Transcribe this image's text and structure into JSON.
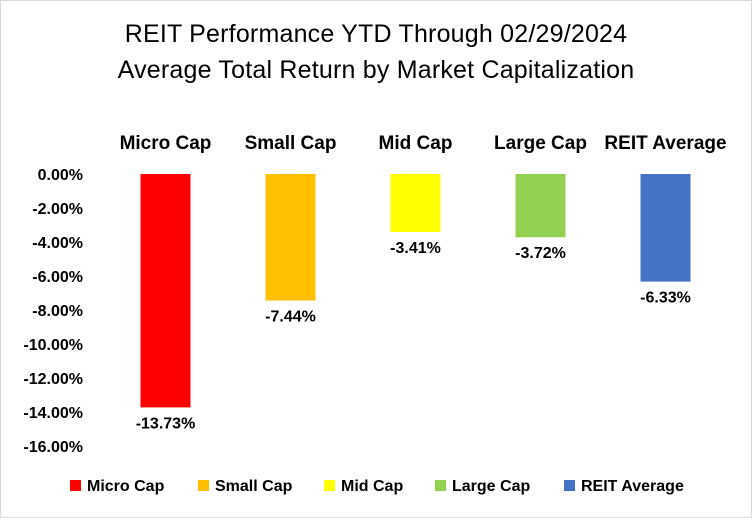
{
  "chart_data": {
    "type": "bar",
    "title": "REIT Performance YTD Through 02/29/2024",
    "subtitle": "Average Total Return by Market Capitalization",
    "categories": [
      "Micro Cap",
      "Small Cap",
      "Mid Cap",
      "Large Cap",
      "REIT Average"
    ],
    "values": [
      -13.73,
      -7.44,
      -3.41,
      -3.72,
      -6.33
    ],
    "data_labels": [
      "-13.73%",
      "-7.44%",
      "-3.41%",
      "-3.72%",
      "-6.33%"
    ],
    "colors": [
      "#ff0000",
      "#ffc000",
      "#ffff00",
      "#92d050",
      "#4472c4"
    ],
    "y_ticks": [
      0,
      -2,
      -4,
      -6,
      -8,
      -10,
      -12,
      -14,
      -16
    ],
    "y_tick_labels": [
      "0.00%",
      "-2.00%",
      "-4.00%",
      "-6.00%",
      "-8.00%",
      "-10.00%",
      "-12.00%",
      "-14.00%",
      "-16.00%"
    ],
    "ylim": [
      -16,
      0
    ],
    "xlabel": "",
    "ylabel": "",
    "grid": false,
    "legend_position": "bottom",
    "legend": [
      "Micro Cap",
      "Small Cap",
      "Mid Cap",
      "Large Cap",
      "REIT Average"
    ]
  }
}
